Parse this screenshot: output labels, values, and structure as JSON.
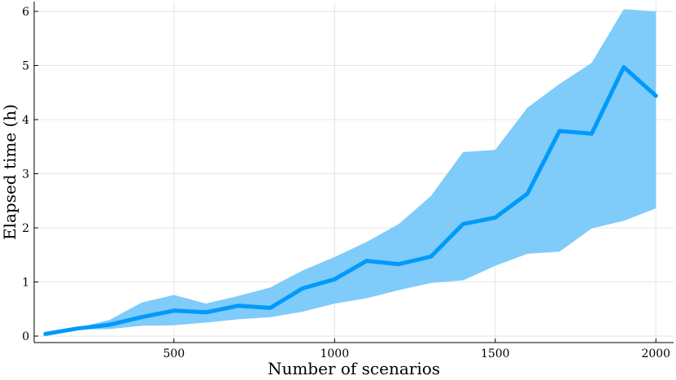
{
  "chart_data": {
    "type": "line",
    "xlabel": "Number of scenarios",
    "ylabel": "Elapsed time (h)",
    "xlim": [
      65,
      2055
    ],
    "ylim": [
      -0.12,
      6.18
    ],
    "xticks": [
      500,
      1000,
      1500,
      2000
    ],
    "yticks": [
      0,
      1,
      2,
      3,
      4,
      5,
      6
    ],
    "xtick_labels": [
      "500",
      "1000",
      "1500",
      "2000"
    ],
    "ytick_labels": [
      "0",
      "1",
      "2",
      "3",
      "4",
      "5",
      "6"
    ],
    "grid": true,
    "legend": false,
    "colors": {
      "line": "#009AF9",
      "band": "#7FCBFA"
    },
    "series": [
      {
        "x": [
          100,
          200,
          300,
          400,
          500,
          600,
          700,
          800,
          900,
          1000,
          1100,
          1200,
          1300,
          1400,
          1500,
          1600,
          1700,
          1800,
          1900,
          2000
        ],
        "mean": [
          0.04,
          0.14,
          0.21,
          0.35,
          0.47,
          0.44,
          0.56,
          0.52,
          0.88,
          1.05,
          1.39,
          1.33,
          1.47,
          2.07,
          2.19,
          2.63,
          3.79,
          3.74,
          4.97,
          4.44
        ],
        "lower": [
          0.04,
          0.12,
          0.13,
          0.19,
          0.2,
          0.25,
          0.31,
          0.35,
          0.45,
          0.6,
          0.7,
          0.85,
          0.98,
          1.03,
          1.3,
          1.52,
          1.56,
          1.99,
          2.13,
          2.36
        ],
        "upper": [
          0.04,
          0.15,
          0.3,
          0.62,
          0.76,
          0.6,
          0.74,
          0.9,
          1.21,
          1.46,
          1.74,
          2.07,
          2.59,
          3.4,
          3.44,
          4.22,
          4.66,
          5.05,
          6.04,
          6.0
        ]
      }
    ]
  }
}
